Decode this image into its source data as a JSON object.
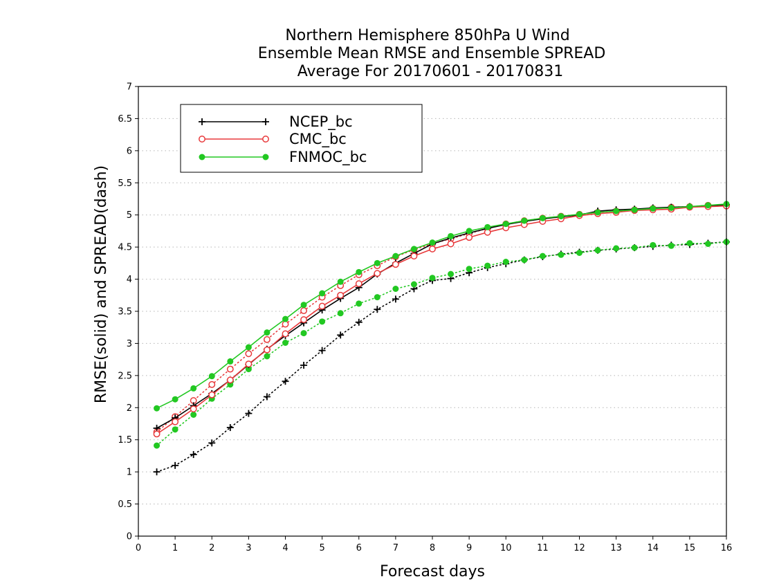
{
  "chart_data": {
    "type": "line",
    "title_lines": [
      "Northern Hemisphere 850hPa U Wind",
      "Ensemble Mean RMSE and Ensemble SPREAD",
      "Average For 20170601 - 20170831"
    ],
    "xlabel": "Forecast days",
    "ylabel": "RMSE(solid) and SPREAD(dash)",
    "xlim": [
      0,
      16
    ],
    "ylim": [
      0,
      7
    ],
    "x_ticks": [
      "0",
      "1",
      "2",
      "3",
      "4",
      "5",
      "6",
      "7",
      "8",
      "9",
      "10",
      "11",
      "12",
      "13",
      "14",
      "15",
      "16"
    ],
    "y_ticks": [
      "0",
      "0.5",
      "1",
      "1.5",
      "2",
      "2.5",
      "3",
      "3.5",
      "4",
      "4.5",
      "5",
      "5.5",
      "6",
      "6.5",
      "7"
    ],
    "grid": true,
    "legend_position": "top-left",
    "x": [
      0.5,
      1,
      1.5,
      2,
      2.5,
      3,
      3.5,
      4,
      4.5,
      5,
      5.5,
      6,
      6.5,
      7,
      7.5,
      8,
      8.5,
      9,
      9.5,
      10,
      10.5,
      11,
      11.5,
      12,
      12.5,
      13,
      13.5,
      14,
      14.5,
      15,
      15.5,
      16
    ],
    "series": [
      {
        "name": "NCEP_bc",
        "color": "#000000",
        "marker": "plus",
        "rmse": [
          1.68,
          1.84,
          2.03,
          2.22,
          2.43,
          2.67,
          2.91,
          3.12,
          3.32,
          3.52,
          3.7,
          3.87,
          4.08,
          4.25,
          4.4,
          4.55,
          4.64,
          4.72,
          4.79,
          4.85,
          4.9,
          4.94,
          4.97,
          5.0,
          5.06,
          5.08,
          5.09,
          5.11,
          5.12,
          5.13,
          5.14,
          5.16
        ],
        "spread": [
          1.0,
          1.1,
          1.27,
          1.45,
          1.69,
          1.91,
          2.17,
          2.41,
          2.66,
          2.89,
          3.13,
          3.33,
          3.53,
          3.69,
          3.85,
          3.98,
          4.01,
          4.1,
          4.18,
          4.24,
          4.3,
          4.35,
          4.39,
          4.42,
          4.45,
          4.47,
          4.49,
          4.51,
          4.53,
          4.54,
          4.56,
          4.58
        ]
      },
      {
        "name": "CMC_bc",
        "color": "#e8393b",
        "marker": "open-circle",
        "rmse": [
          1.59,
          1.78,
          1.98,
          2.2,
          2.43,
          2.68,
          2.9,
          3.15,
          3.37,
          3.58,
          3.75,
          3.93,
          4.09,
          4.23,
          4.36,
          4.47,
          4.55,
          4.65,
          4.73,
          4.8,
          4.85,
          4.9,
          4.94,
          4.99,
          5.02,
          5.04,
          5.07,
          5.08,
          5.09,
          5.12,
          5.13,
          5.14
        ],
        "spread": [
          1.62,
          1.86,
          2.11,
          2.36,
          2.6,
          2.84,
          3.06,
          3.3,
          3.51,
          3.72,
          3.9,
          4.07,
          4.21,
          4.35,
          4.46,
          4.55,
          4.63,
          4.71,
          4.79,
          4.86,
          4.91,
          4.95,
          4.98,
          5.01,
          5.04,
          5.06,
          5.08,
          5.1,
          5.12,
          5.13,
          5.15,
          5.15
        ]
      },
      {
        "name": "FNMOC_bc",
        "color": "#22c822",
        "marker": "filled-circle",
        "rmse": [
          1.99,
          2.13,
          2.3,
          2.49,
          2.72,
          2.94,
          3.17,
          3.38,
          3.6,
          3.78,
          3.96,
          4.11,
          4.25,
          4.36,
          4.47,
          4.57,
          4.67,
          4.75,
          4.81,
          4.86,
          4.91,
          4.95,
          4.98,
          5.01,
          5.04,
          5.06,
          5.08,
          5.1,
          5.11,
          5.13,
          5.15,
          5.17
        ],
        "spread": [
          1.41,
          1.66,
          1.89,
          2.14,
          2.36,
          2.6,
          2.8,
          3.01,
          3.16,
          3.34,
          3.47,
          3.62,
          3.72,
          3.85,
          3.92,
          4.02,
          4.08,
          4.16,
          4.21,
          4.27,
          4.3,
          4.36,
          4.38,
          4.41,
          4.45,
          4.48,
          4.49,
          4.53,
          4.52,
          4.56,
          4.55,
          4.58
        ]
      }
    ]
  }
}
